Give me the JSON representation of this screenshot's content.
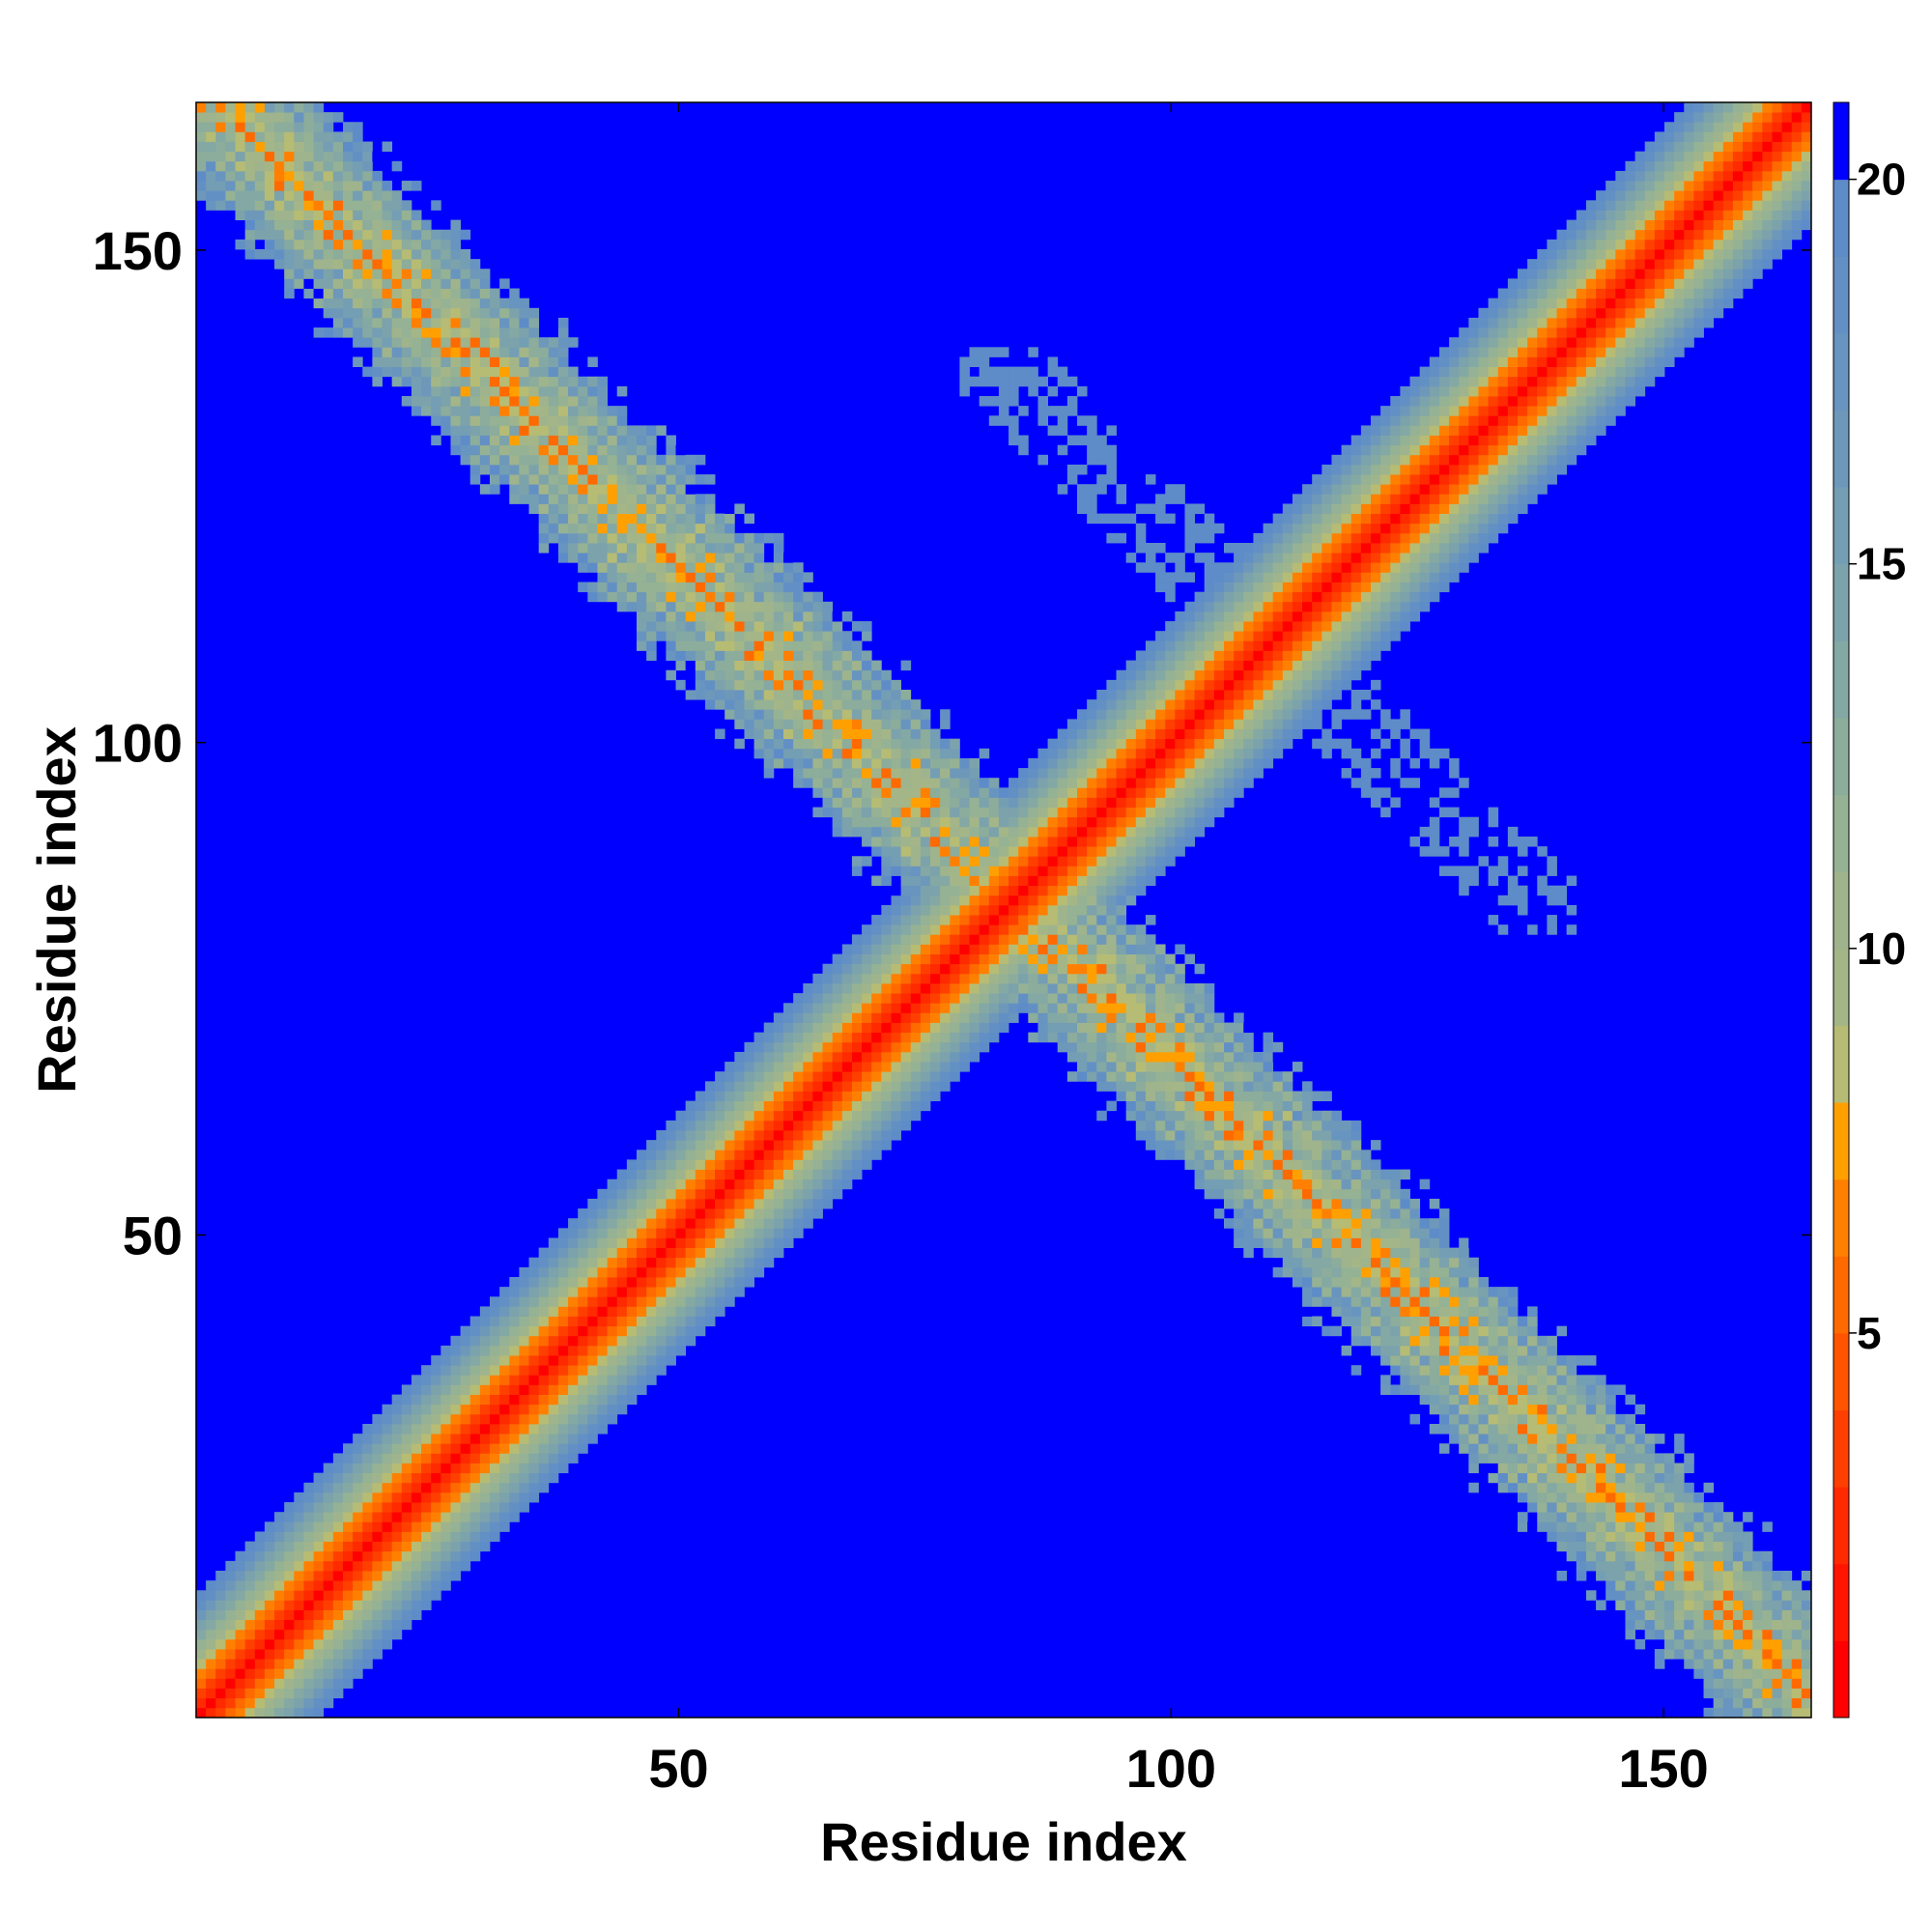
{
  "chart_data": {
    "type": "heatmap",
    "title": "",
    "xlabel": "Residue index",
    "ylabel": "Residue index",
    "n_residues": 165,
    "xlim": [
      1,
      165
    ],
    "ylim": [
      1,
      165
    ],
    "x_ticks": [
      50,
      100,
      150
    ],
    "y_ticks": [
      50,
      100,
      150
    ],
    "grid": false,
    "colorbar": {
      "position": "right",
      "range": [
        0,
        21
      ],
      "ticks": [
        5,
        10,
        15,
        20
      ],
      "levels": [
        {
          "upper": 1,
          "color": "#ff0000"
        },
        {
          "upper": 2,
          "color": "#ff1500"
        },
        {
          "upper": 3,
          "color": "#ff2a00"
        },
        {
          "upper": 4,
          "color": "#ff3f00"
        },
        {
          "upper": 5,
          "color": "#ff5400"
        },
        {
          "upper": 6,
          "color": "#ff6a00"
        },
        {
          "upper": 7,
          "color": "#ff8000"
        },
        {
          "upper": 8,
          "color": "#ffa000"
        },
        {
          "upper": 9,
          "color": "#b7bc74"
        },
        {
          "upper": 10,
          "color": "#a4b688"
        },
        {
          "upper": 11,
          "color": "#9fb48c"
        },
        {
          "upper": 12,
          "color": "#95b294"
        },
        {
          "upper": 13,
          "color": "#8cac9c"
        },
        {
          "upper": 14,
          "color": "#84a8a4"
        },
        {
          "upper": 15,
          "color": "#7ca2ac"
        },
        {
          "upper": 16,
          "color": "#749eb4"
        },
        {
          "upper": 17,
          "color": "#6e98ba"
        },
        {
          "upper": 18,
          "color": "#6894c0"
        },
        {
          "upper": 19,
          "color": "#6390c4"
        },
        {
          "upper": 20,
          "color": "#5e8cc8"
        },
        {
          "upper": 21,
          "color": "#0000ff"
        }
      ]
    },
    "features": {
      "main_diagonal": {
        "from": [
          1,
          1
        ],
        "to": [
          165,
          165
        ],
        "description": "distance increases with |i-j|; red/orange core, green and steel-blue halo up to about 20"
      },
      "antiparallel_band": {
        "from": [
          3,
          165
        ],
        "to": [
          165,
          3
        ],
        "approx_center_min_value": 6.5,
        "half_width_residues": 14
      },
      "upper_sparse_cluster": {
        "x_range": [
          79,
          141
        ],
        "y_range": [
          81,
          140
        ],
        "value_range": [
          18,
          20
        ]
      }
    }
  }
}
